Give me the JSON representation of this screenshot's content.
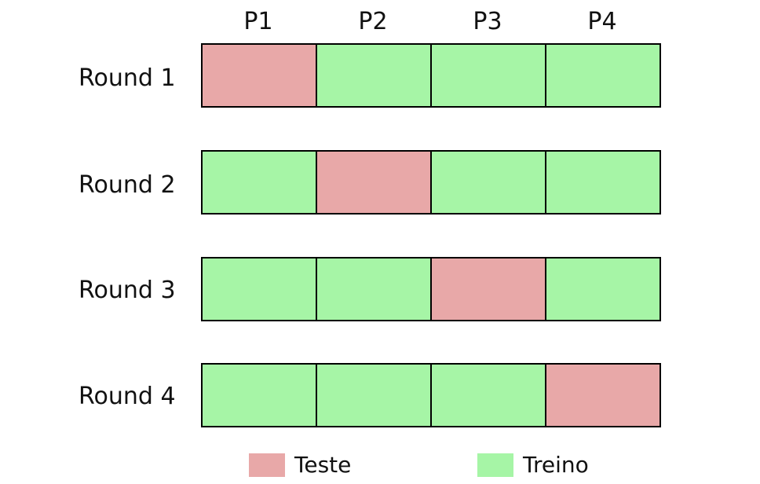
{
  "colors": {
    "test": "#e8a8a8",
    "train": "#a6f5a6"
  },
  "columns": [
    "P1",
    "P2",
    "P3",
    "P4"
  ],
  "rounds": [
    {
      "label": "Round 1",
      "cells": [
        "test",
        "train",
        "train",
        "train"
      ]
    },
    {
      "label": "Round 2",
      "cells": [
        "train",
        "test",
        "train",
        "train"
      ]
    },
    {
      "label": "Round 3",
      "cells": [
        "train",
        "train",
        "test",
        "train"
      ]
    },
    {
      "label": "Round 4",
      "cells": [
        "train",
        "train",
        "train",
        "test"
      ]
    }
  ],
  "legend": {
    "test_label": "Teste",
    "train_label": "Treino"
  }
}
